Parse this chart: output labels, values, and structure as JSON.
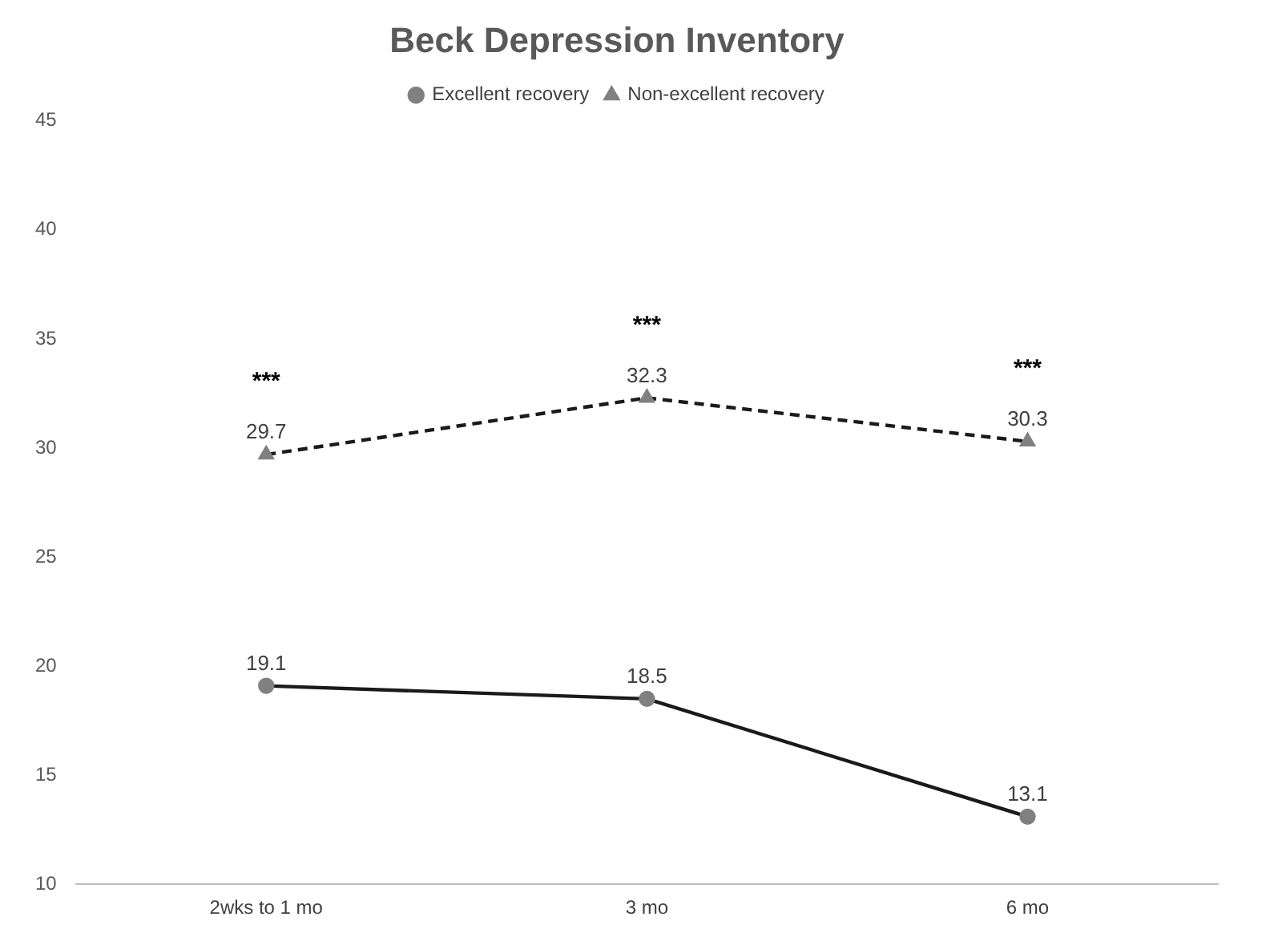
{
  "chart_data": {
    "type": "line",
    "title": "Beck Depression Inventory",
    "categories": [
      "2wks to 1 mo",
      "3 mo",
      "6 mo"
    ],
    "series": [
      {
        "name": "Excellent recovery",
        "color": "#1a1a1a",
        "values": [
          19.1,
          18.5,
          13.1
        ],
        "marker": "circle",
        "line_style": "solid"
      },
      {
        "name": "Non-excellent recovery",
        "color": "#1a1a1a",
        "values": [
          29.7,
          32.3,
          30.3
        ],
        "marker": "triangle",
        "line_style": "dashed"
      }
    ],
    "ylim": [
      10,
      45
    ],
    "yticks": [
      10,
      15,
      20,
      25,
      30,
      35,
      40,
      45
    ],
    "grid": false,
    "legend": "top",
    "data_labels": true,
    "annotations": [
      "***",
      "***",
      "***"
    ]
  }
}
